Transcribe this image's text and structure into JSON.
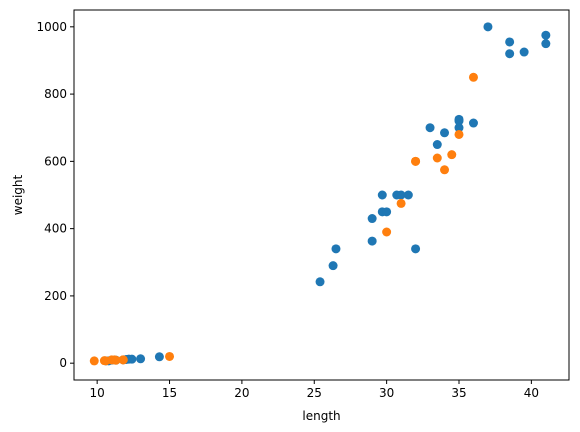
{
  "chart_data": {
    "type": "scatter",
    "xlabel": "length",
    "ylabel": "weight",
    "xlim": [
      8.4,
      42.6
    ],
    "ylim": [
      -50,
      1050
    ],
    "x_ticks": [
      10,
      15,
      20,
      25,
      30,
      35,
      40
    ],
    "y_ticks": [
      0,
      200,
      400,
      600,
      800,
      1000
    ],
    "grid": false,
    "colors": {
      "series_1": "#1f77b4",
      "series_2": "#ff7f0e"
    },
    "series": [
      {
        "color": "#1f77b4",
        "points": [
          [
            10.6,
            7
          ],
          [
            10.8,
            7
          ],
          [
            11.0,
            9
          ],
          [
            11.3,
            9
          ],
          [
            11.8,
            10
          ],
          [
            12.0,
            11
          ],
          [
            12.2,
            12
          ],
          [
            12.4,
            12
          ],
          [
            13.0,
            13
          ],
          [
            14.3,
            19
          ],
          [
            25.4,
            242
          ],
          [
            26.3,
            290
          ],
          [
            26.5,
            340
          ],
          [
            29.0,
            363
          ],
          [
            29.0,
            430
          ],
          [
            29.7,
            450
          ],
          [
            29.7,
            500
          ],
          [
            30.0,
            450
          ],
          [
            30.7,
            500
          ],
          [
            31.0,
            500
          ],
          [
            31.5,
            500
          ],
          [
            32.0,
            340
          ],
          [
            33.0,
            700
          ],
          [
            33.5,
            650
          ],
          [
            34.0,
            685
          ],
          [
            35.0,
            700
          ],
          [
            35.0,
            725
          ],
          [
            35.0,
            720
          ],
          [
            36.0,
            714
          ],
          [
            37.0,
            1000
          ],
          [
            38.5,
            920
          ],
          [
            38.5,
            955
          ],
          [
            39.5,
            925
          ],
          [
            41.0,
            975
          ],
          [
            41.0,
            950
          ]
        ]
      },
      {
        "color": "#ff7f0e",
        "points": [
          [
            9.8,
            6.7
          ],
          [
            10.5,
            7.5
          ],
          [
            10.6,
            7.0
          ],
          [
            11.0,
            9.7
          ],
          [
            11.2,
            9.8
          ],
          [
            11.3,
            8.7
          ],
          [
            11.8,
            10.0
          ],
          [
            11.8,
            9.9
          ],
          [
            15.0,
            19.9
          ],
          [
            30.0,
            390
          ],
          [
            31.0,
            475
          ],
          [
            32.0,
            600
          ],
          [
            32.0,
            600
          ],
          [
            33.5,
            610
          ],
          [
            34.0,
            575
          ],
          [
            34.5,
            620
          ],
          [
            35.0,
            680
          ],
          [
            36.0,
            850
          ]
        ]
      }
    ]
  }
}
